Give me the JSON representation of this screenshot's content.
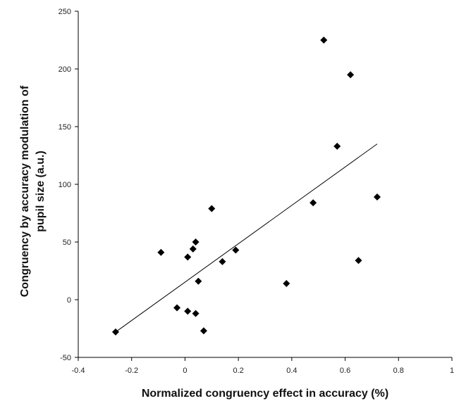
{
  "chart_data": {
    "type": "scatter",
    "title": "",
    "xlabel": "Normalized congruency effect in accuracy (%)",
    "ylabel_lines": [
      "Congruency by accuracy modulation of",
      "pupil size (a.u.)"
    ],
    "xlim": [
      -0.4,
      1
    ],
    "ylim": [
      -50,
      250
    ],
    "x_ticks": [
      "-0.4",
      "-0.2",
      "0",
      "0.2",
      "0.4",
      "0.6",
      "0.8",
      "1"
    ],
    "y_ticks": [
      "-50",
      "0",
      "50",
      "100",
      "150",
      "200",
      "250"
    ],
    "grid": false,
    "legend": "none",
    "marker": "diamond",
    "marker_color": "#000000",
    "points": [
      {
        "x": -0.26,
        "y": -28
      },
      {
        "x": -0.09,
        "y": 41
      },
      {
        "x": -0.03,
        "y": -7
      },
      {
        "x": 0.01,
        "y": -10
      },
      {
        "x": 0.01,
        "y": 37
      },
      {
        "x": 0.03,
        "y": 44
      },
      {
        "x": 0.04,
        "y": 50
      },
      {
        "x": 0.04,
        "y": -12
      },
      {
        "x": 0.05,
        "y": 16
      },
      {
        "x": 0.07,
        "y": -27
      },
      {
        "x": 0.1,
        "y": 79
      },
      {
        "x": 0.14,
        "y": 33
      },
      {
        "x": 0.19,
        "y": 43
      },
      {
        "x": 0.38,
        "y": 14
      },
      {
        "x": 0.48,
        "y": 84
      },
      {
        "x": 0.52,
        "y": 225
      },
      {
        "x": 0.57,
        "y": 133
      },
      {
        "x": 0.62,
        "y": 195
      },
      {
        "x": 0.65,
        "y": 34
      },
      {
        "x": 0.72,
        "y": 89
      }
    ],
    "trendline": {
      "x": [
        -0.26,
        0.72
      ],
      "y": [
        -28,
        135
      ]
    }
  }
}
